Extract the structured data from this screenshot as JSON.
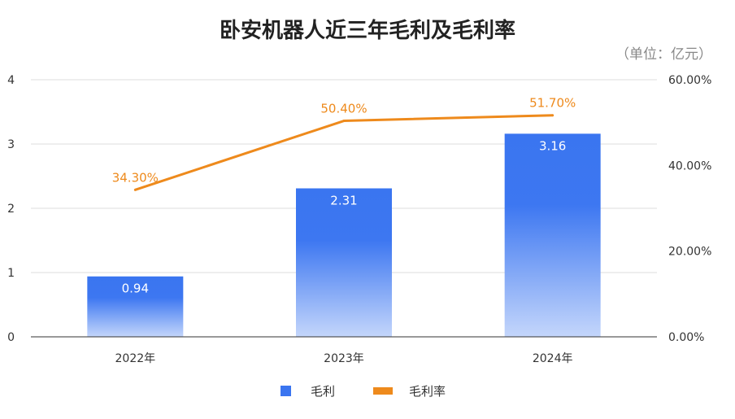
{
  "chart_data": {
    "type": "bar",
    "title": "卧安机器人近三年毛利及毛利率",
    "unit_note": "（单位：亿元）",
    "categories": [
      "2022年",
      "2023年",
      "2024年"
    ],
    "series": [
      {
        "name": "毛利",
        "type": "bar",
        "axis": "left",
        "values": [
          0.94,
          2.31,
          3.16
        ],
        "labels": [
          "0.94",
          "2.31",
          "3.16"
        ],
        "color": "#3a75f0"
      },
      {
        "name": "毛利率",
        "type": "line",
        "axis": "right",
        "values": [
          34.3,
          50.4,
          51.7
        ],
        "labels": [
          "34.30%",
          "50.40%",
          "51.70%"
        ],
        "color": "#ee8a1c"
      }
    ],
    "y_left": {
      "range": [
        0,
        4
      ],
      "ticks": [
        "0",
        "1",
        "2",
        "3",
        "4"
      ]
    },
    "y_right": {
      "range": [
        0,
        60
      ],
      "ticks": [
        "0.00%",
        "20.00%",
        "40.00%",
        "60.00%"
      ]
    },
    "grid": true,
    "legend": "bottom-center"
  }
}
